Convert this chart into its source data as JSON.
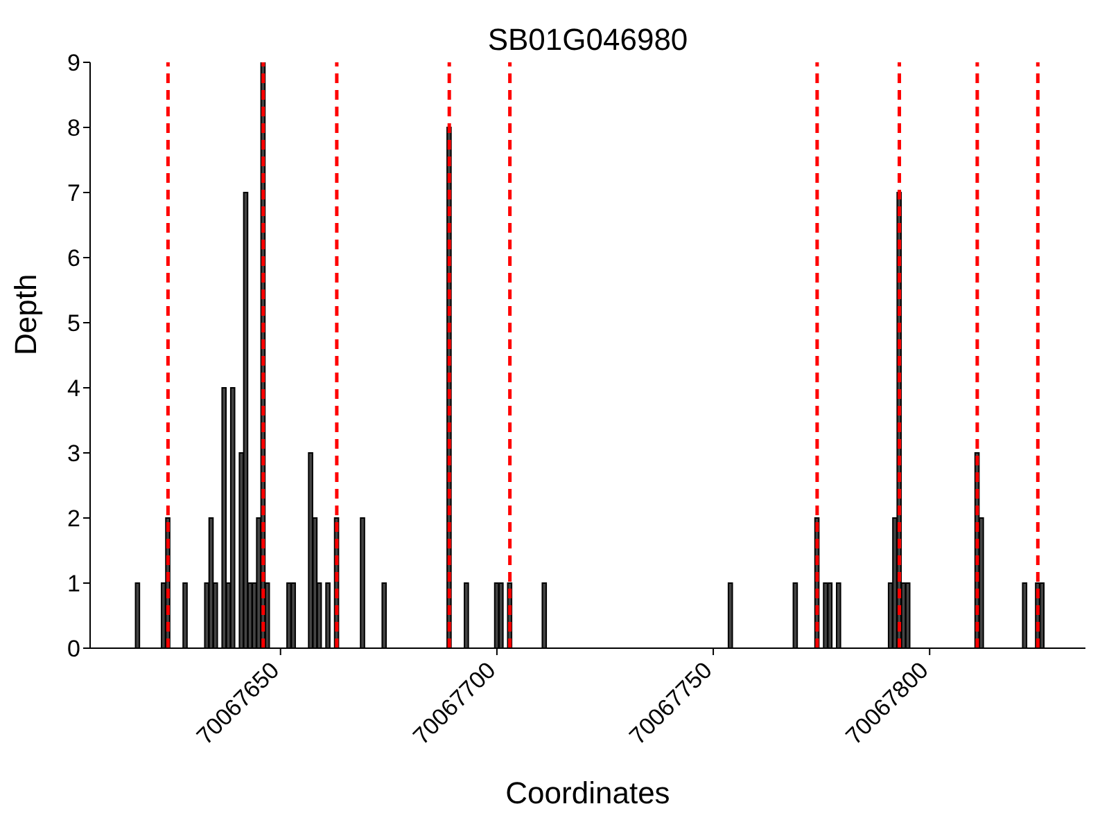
{
  "chart_data": {
    "type": "bar",
    "title": "SB01G046980",
    "xlabel": "Coordinates",
    "ylabel": "Depth",
    "x": [
      70067617,
      70067623,
      70067624,
      70067628,
      70067633,
      70067634,
      70067635,
      70067637,
      70067638,
      70067639,
      70067641,
      70067642,
      70067643,
      70067644,
      70067645,
      70067646,
      70067647,
      70067652,
      70067653,
      70067657,
      70067658,
      70067659,
      70067661,
      70067663,
      70067669,
      70067674,
      70067689,
      70067693,
      70067700,
      70067701,
      70067703,
      70067711,
      70067754,
      70067769,
      70067774,
      70067776,
      70067777,
      70067779,
      70067791,
      70067792,
      70067793,
      70067794,
      70067795,
      70067811,
      70067812,
      70067822,
      70067825,
      70067826
    ],
    "values": [
      1,
      1,
      2,
      1,
      1,
      2,
      1,
      4,
      1,
      4,
      3,
      7,
      1,
      1,
      2,
      9,
      1,
      1,
      1,
      3,
      2,
      1,
      1,
      2,
      2,
      1,
      8,
      1,
      1,
      1,
      1,
      1,
      1,
      1,
      2,
      1,
      1,
      1,
      1,
      2,
      7,
      1,
      1,
      3,
      2,
      1,
      1,
      1
    ],
    "color": "#444444",
    "xlim": [
      70067606,
      70067836
    ],
    "xticks": [
      70067650,
      70067700,
      70067750,
      70067800
    ],
    "ylim": [
      0,
      9
    ],
    "yticks": [
      0,
      1,
      2,
      3,
      4,
      5,
      6,
      7,
      8,
      9
    ],
    "ref_lines": [
      {
        "axis": "x",
        "value": 70067624,
        "color": "#ff0000",
        "line_style": "dashed"
      },
      {
        "axis": "x",
        "value": 70067646,
        "color": "#ff0000",
        "line_style": "dashed"
      },
      {
        "axis": "x",
        "value": 70067663,
        "color": "#ff0000",
        "line_style": "dashed"
      },
      {
        "axis": "x",
        "value": 70067689,
        "color": "#ff0000",
        "line_style": "dashed"
      },
      {
        "axis": "x",
        "value": 70067703,
        "color": "#ff0000",
        "line_style": "dashed"
      },
      {
        "axis": "x",
        "value": 70067774,
        "color": "#ff0000",
        "line_style": "dashed"
      },
      {
        "axis": "x",
        "value": 70067793,
        "color": "#ff0000",
        "line_style": "dashed"
      },
      {
        "axis": "x",
        "value": 70067811,
        "color": "#ff0000",
        "line_style": "dashed"
      },
      {
        "axis": "x",
        "value": 70067825,
        "color": "#ff0000",
        "line_style": "dashed"
      }
    ]
  }
}
